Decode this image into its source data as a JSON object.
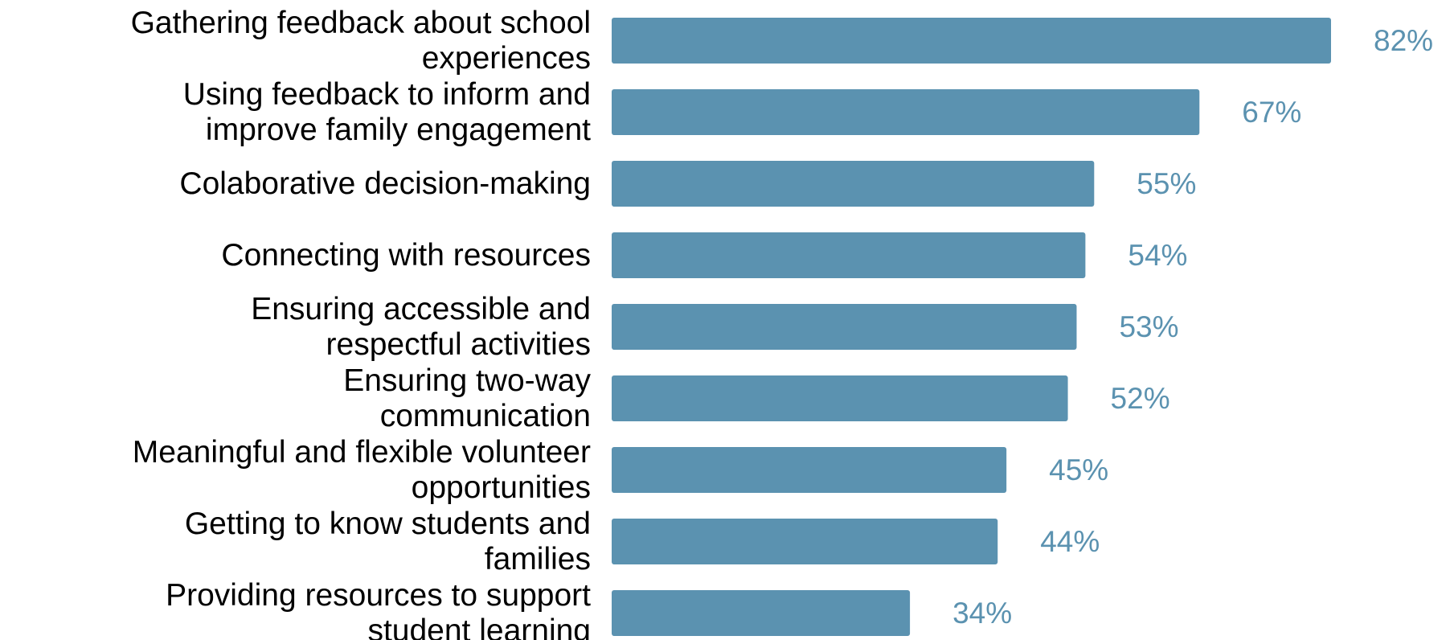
{
  "chart_data": {
    "type": "bar",
    "orientation": "horizontal",
    "categories": [
      [
        "Gathering feedback about school",
        "experiences"
      ],
      [
        "Using feedback to inform and",
        "improve family engagement"
      ],
      [
        "Colaborative decision-making"
      ],
      [
        "Connecting with resources"
      ],
      [
        "Ensuring accessible and",
        "respectful activities"
      ],
      [
        "Ensuring two-way",
        "communication"
      ],
      [
        "Meaningful and flexible volunteer",
        "opportunities"
      ],
      [
        "Getting to know students and",
        "families"
      ],
      [
        "Providing resources to support",
        "student learning"
      ]
    ],
    "values": [
      82,
      67,
      55,
      54,
      53,
      52,
      45,
      44,
      34
    ],
    "value_labels": [
      "82%",
      "67%",
      "55%",
      "54%",
      "53%",
      "52%",
      "45%",
      "44%",
      "34%"
    ],
    "unit": "%",
    "xlim": [
      0,
      100
    ],
    "grid": false,
    "legend": "none",
    "bar_color": "#5b92b0",
    "label_color": "#5b92b0"
  }
}
